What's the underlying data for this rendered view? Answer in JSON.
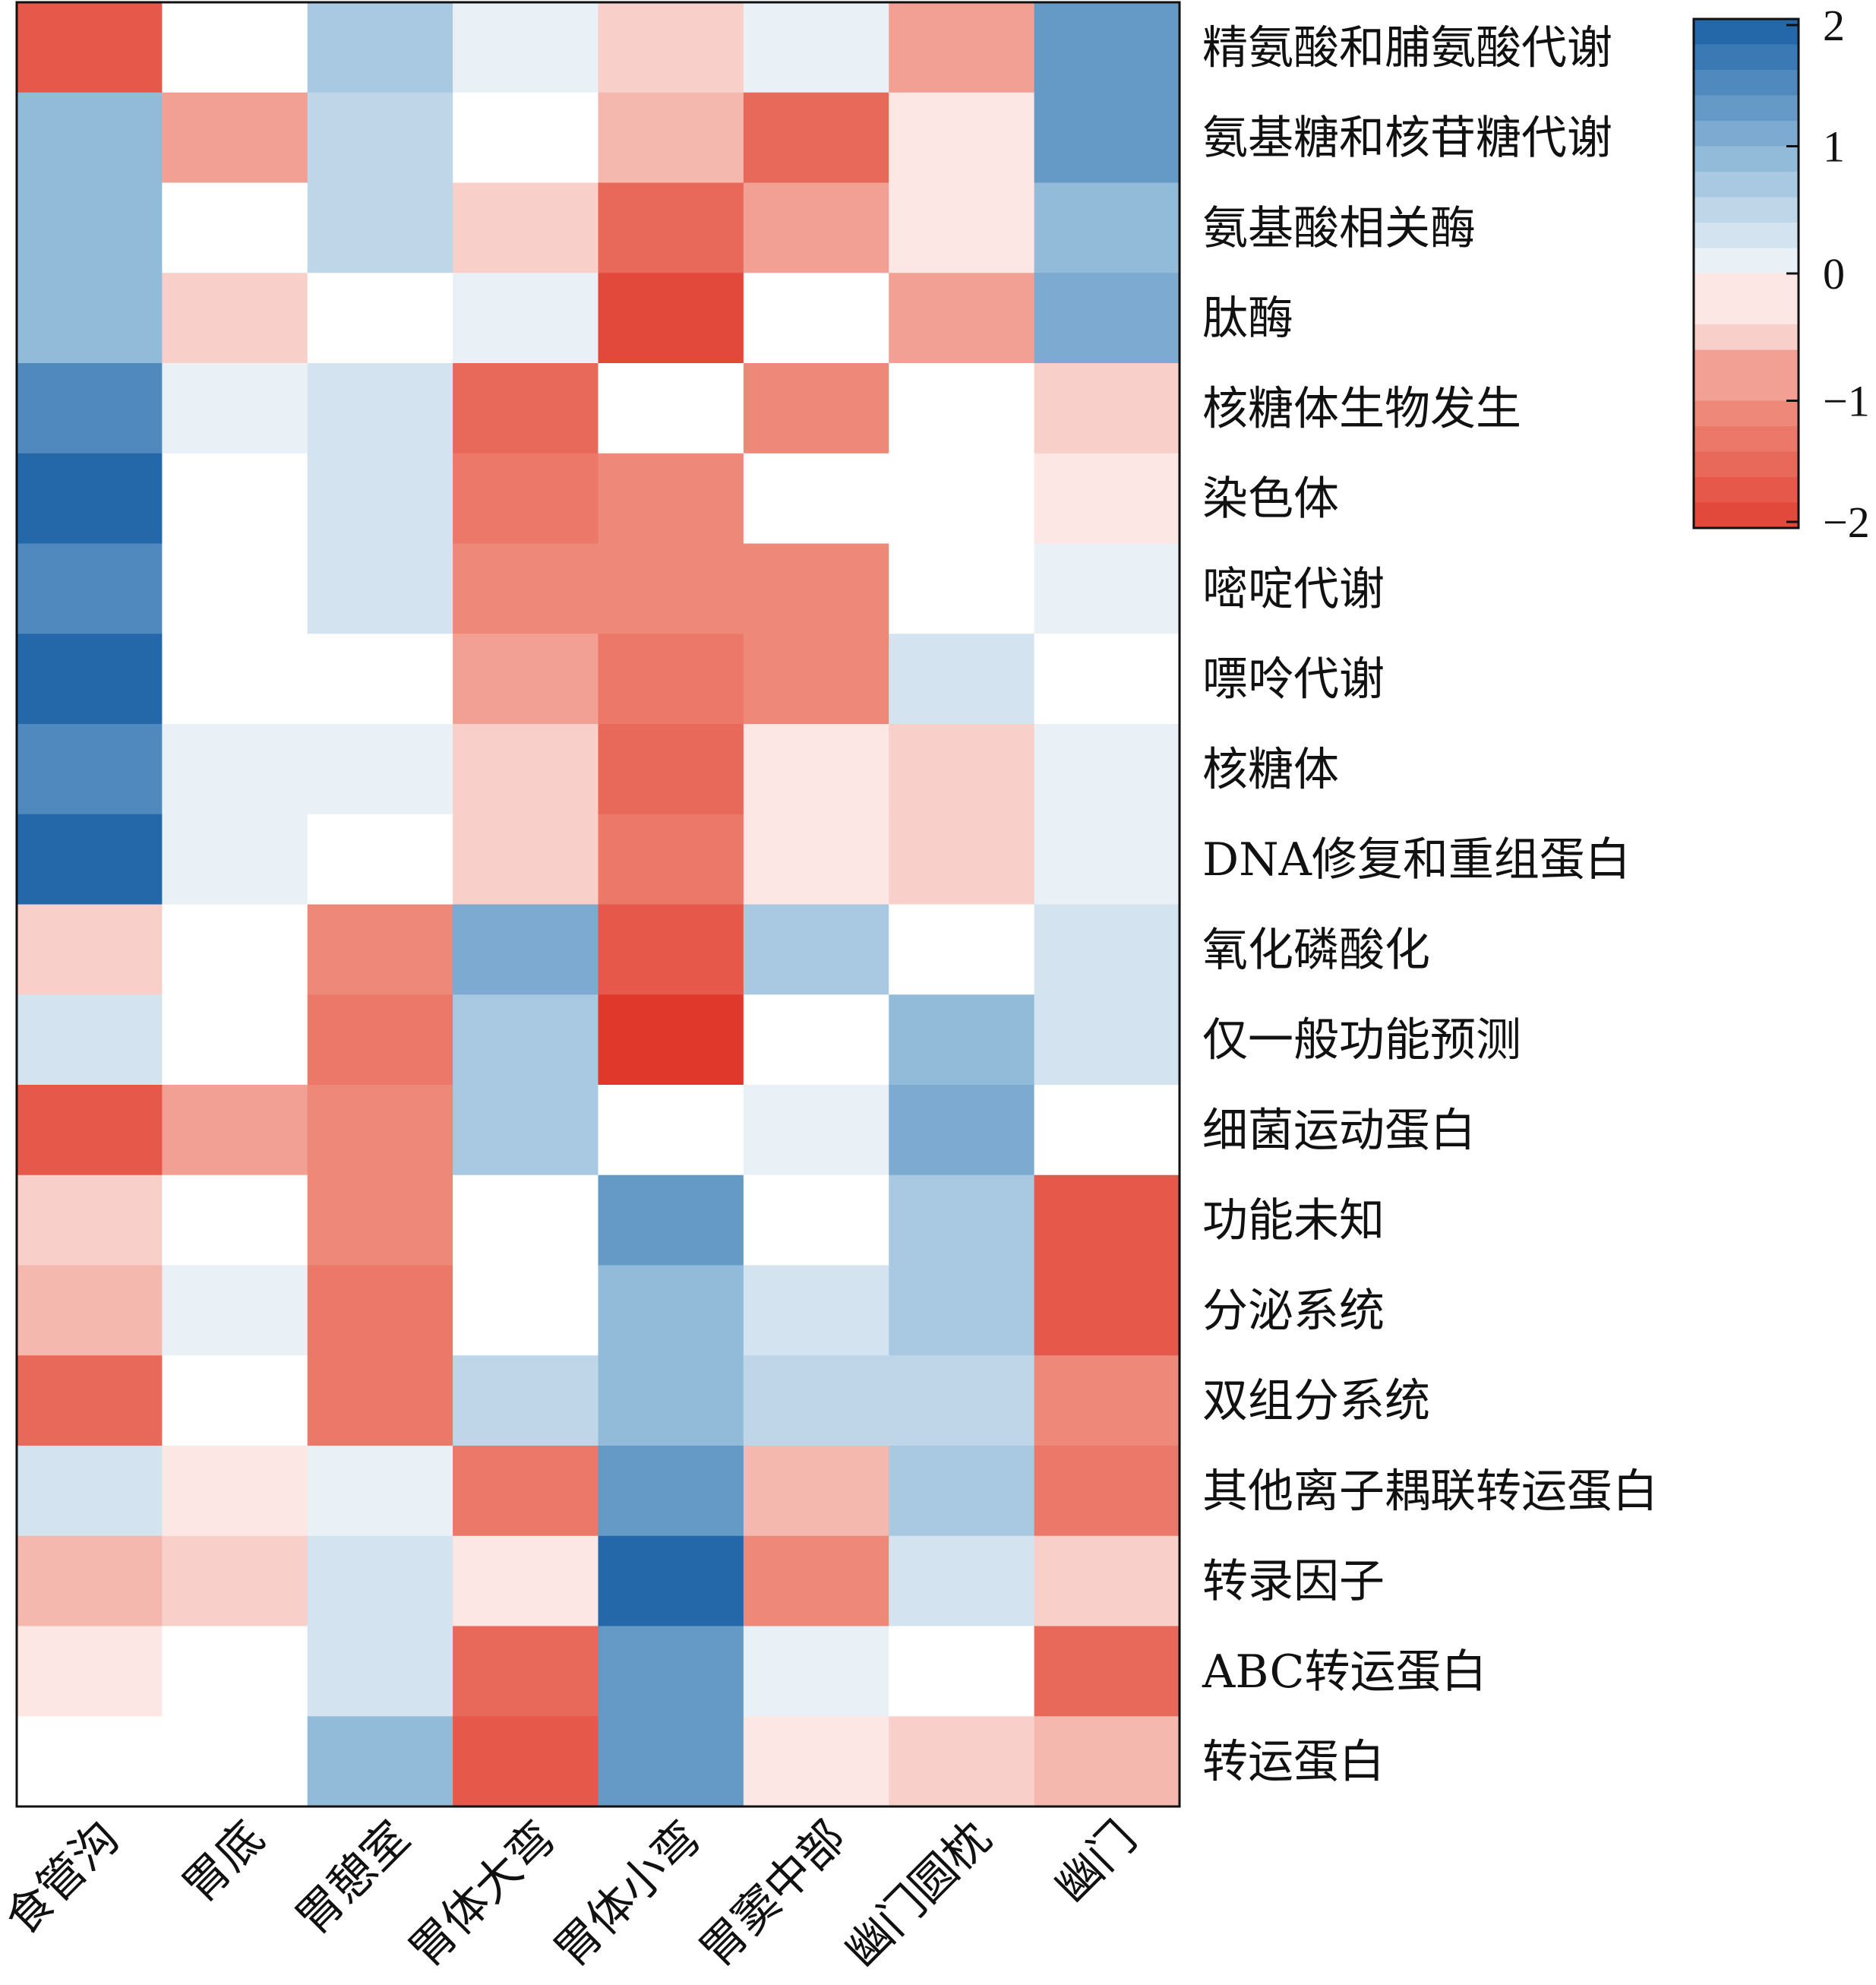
{
  "chart_data": {
    "type": "heatmap",
    "title": "",
    "columns": [
      "食管沟",
      "胃底",
      "胃憩室",
      "胃体大弯",
      "胃体小弯",
      "胃窦中部",
      "幽门圆枕",
      "幽门"
    ],
    "rows": [
      "精氨酸和脯氨酸代谢",
      "氨基糖和核苷糖代谢",
      "氨基酸相关酶",
      "肽酶",
      "核糖体生物发生",
      "染色体",
      "嘧啶代谢",
      "嘌呤代谢",
      "核糖体",
      "DNA修复和重组蛋白",
      "氧化磷酸化",
      "仅一般功能预测",
      "细菌运动蛋白",
      "功能未知",
      "分泌系统",
      "双组分系统",
      "其他离子耦联转运蛋白",
      "转录因子",
      "ABC转运蛋白",
      "转运蛋白"
    ],
    "values": [
      [
        -1.7,
        -0.1,
        0.7,
        0.1,
        -0.5,
        0.1,
        -0.8,
        1.3
      ],
      [
        0.9,
        -0.8,
        0.5,
        0,
        -0.7,
        -1.5,
        -0.3,
        1.3
      ],
      [
        1.0,
        -0.1,
        0.5,
        -0.5,
        -1.5,
        -0.8,
        -0.3,
        0.9
      ],
      [
        1.0,
        -0.5,
        0,
        0.1,
        -1.8,
        -0.1,
        -0.8,
        1.1
      ],
      [
        1.5,
        0.1,
        0.3,
        -1.5,
        -0.1,
        -1.0,
        0,
        -0.5
      ],
      [
        1.9,
        0,
        0.3,
        -1.3,
        -1.0,
        -0.1,
        -0.1,
        -0.3
      ],
      [
        1.5,
        -0.1,
        0.3,
        -1.0,
        -1.0,
        -1.0,
        -0.1,
        0.1
      ],
      [
        1.9,
        0,
        0,
        -0.8,
        -1.2,
        -1.0,
        0.3,
        0
      ],
      [
        1.5,
        0.1,
        0.1,
        -0.5,
        -1.5,
        -0.3,
        -0.5,
        0.1
      ],
      [
        1.9,
        0.1,
        0,
        -0.5,
        -1.3,
        -0.3,
        -0.5,
        0.1
      ],
      [
        -0.5,
        0,
        -1.0,
        1.2,
        -1.7,
        0.7,
        -0.1,
        0.3
      ],
      [
        0.3,
        -0.1,
        -1.2,
        0.7,
        -2.0,
        0,
        0.9,
        0.3
      ],
      [
        -1.6,
        -0.8,
        -1.0,
        0.7,
        0,
        0.1,
        1.2,
        -0.1
      ],
      [
        -0.5,
        0,
        -1.0,
        0,
        1.4,
        -0.1,
        0.7,
        -1.6
      ],
      [
        -0.7,
        0.1,
        -1.2,
        0,
        1.0,
        0.3,
        0.7,
        -1.6
      ],
      [
        -1.4,
        -0.1,
        -1.2,
        0.5,
        1.0,
        0.5,
        0.5,
        -1.0
      ],
      [
        0.3,
        -0.3,
        0.1,
        -1.2,
        1.4,
        -0.7,
        0.7,
        -1.3
      ],
      [
        -0.7,
        -0.5,
        0.3,
        -0.3,
        1.9,
        -1.0,
        0.3,
        -0.5
      ],
      [
        -0.3,
        0,
        0.3,
        -1.4,
        1.4,
        0.1,
        0,
        -1.5
      ],
      [
        0,
        -0.1,
        0.9,
        -1.6,
        1.4,
        -0.3,
        -0.5,
        -0.7
      ]
    ],
    "colorbar": {
      "range": [
        -2,
        2
      ],
      "ticks": [
        2,
        1,
        0,
        -1,
        -2
      ],
      "tick_labels": [
        "2",
        "1",
        "0",
        "−1",
        "−2"
      ],
      "colors": {
        "low": "#e0392b",
        "mid": "#ffffff",
        "high": "#2468aa"
      }
    }
  }
}
